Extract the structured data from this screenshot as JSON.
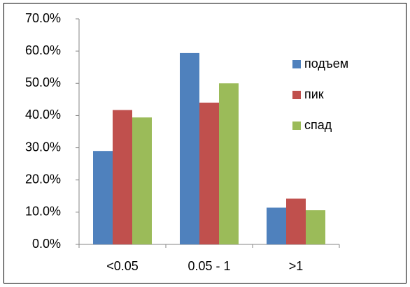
{
  "chart_data": {
    "type": "bar",
    "categories": [
      "<0.05",
      "0.05 - 1",
      ">1"
    ],
    "series": [
      {
        "name": "подъем",
        "color": "#4f81bd",
        "values": [
          29,
          59.4,
          11.4
        ]
      },
      {
        "name": "пик",
        "color": "#c0504d",
        "values": [
          41.7,
          44,
          14.2
        ]
      },
      {
        "name": "спад",
        "color": "#9bbb59",
        "values": [
          39.4,
          50,
          10.6
        ]
      }
    ],
    "ylim": [
      0,
      70
    ],
    "yticks": [
      {
        "value": 0,
        "label": "0.0%"
      },
      {
        "value": 10,
        "label": "10.0%"
      },
      {
        "value": 20,
        "label": "20.0%"
      },
      {
        "value": 30,
        "label": "30.0%"
      },
      {
        "value": 40,
        "label": "40.0%"
      },
      {
        "value": 50,
        "label": "50.0%"
      },
      {
        "value": 60,
        "label": "60.0%"
      },
      {
        "value": 70,
        "label": "70.0%"
      }
    ],
    "grid": false,
    "legend": "right"
  }
}
